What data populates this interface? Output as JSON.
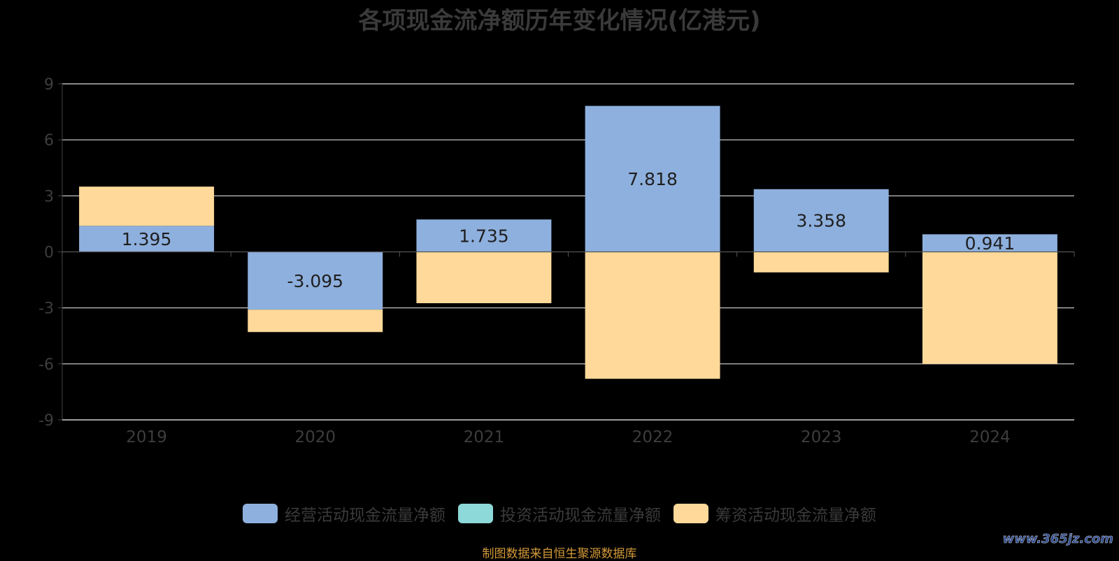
{
  "chart_data": {
    "type": "bar",
    "stacked": true,
    "title": "各项现金流净额历年变化情况(亿港元)",
    "categories": [
      "2019",
      "2020",
      "2021",
      "2022",
      "2023",
      "2024"
    ],
    "ylim": [
      -9,
      9
    ],
    "yticks": [
      9,
      6,
      3,
      0,
      -3,
      -6,
      -9
    ],
    "grid": true,
    "legend_position": "bottom",
    "series": [
      {
        "name": "经营活动现金流量净额",
        "color": "#8eb0de",
        "values": [
          1.395,
          -3.095,
          1.735,
          7.818,
          3.358,
          0.941
        ],
        "labels": [
          "1.395",
          "-3.095",
          "1.735",
          "7.818",
          "3.358",
          "0.941"
        ]
      },
      {
        "name": "投资活动现金流量净额",
        "color": "#8dd8d8",
        "values": [
          0,
          0,
          0,
          0,
          0,
          0
        ]
      },
      {
        "name": "筹资活动现金流量净额",
        "color": "#fed999",
        "values": [
          2.1,
          -1.2,
          -2.75,
          -6.8,
          -1.1,
          -6.0
        ]
      }
    ]
  },
  "source_note": "制图数据来自恒生聚源数据库",
  "watermark": "www.365jz.com"
}
